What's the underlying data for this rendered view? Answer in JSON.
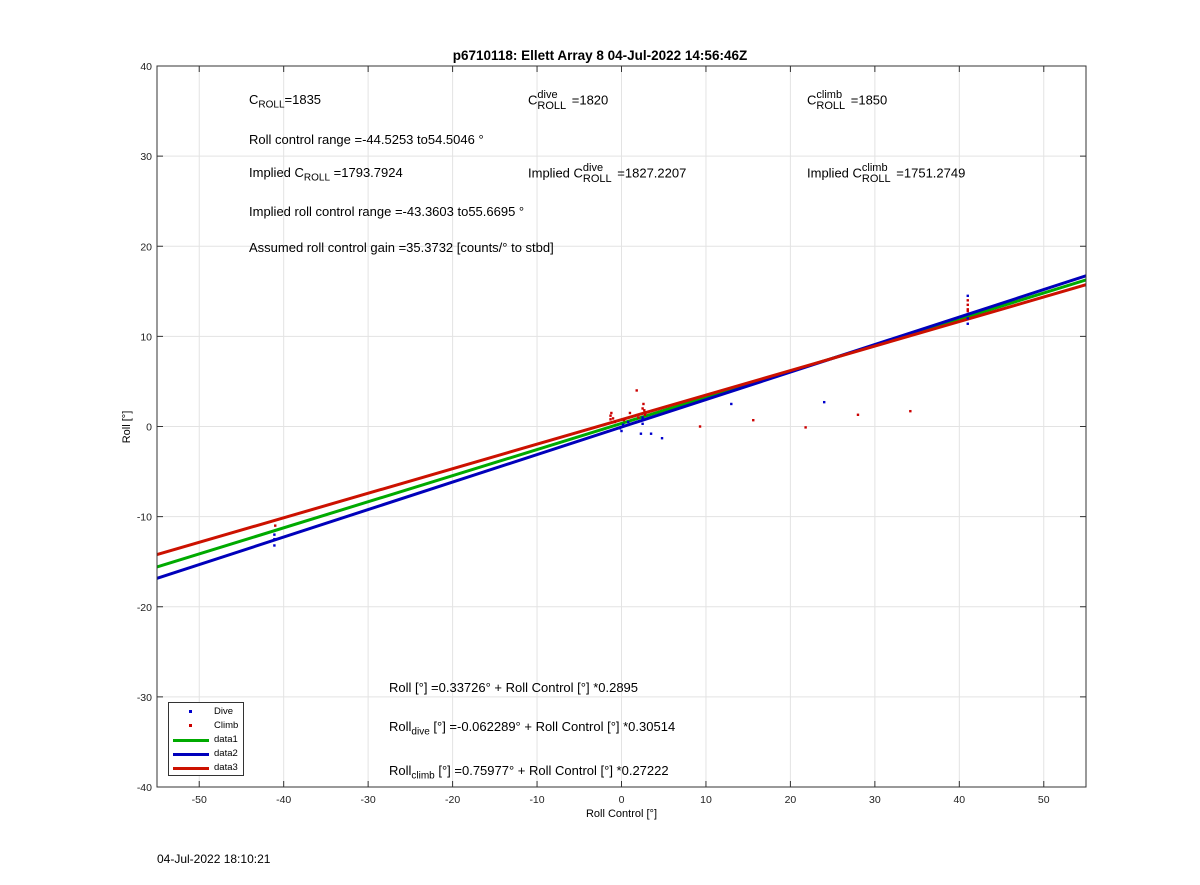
{
  "chart_data": {
    "type": "scatter",
    "title": "p6710118: Ellett Array 8 04-Jul-2022 14:56:46Z",
    "xlabel": "Roll Control [°]",
    "ylabel": "Roll [°]",
    "xlim": [
      -55,
      55
    ],
    "ylim": [
      -40,
      40
    ],
    "xticks": [
      -50,
      -40,
      -30,
      -20,
      -10,
      0,
      10,
      20,
      30,
      40,
      50
    ],
    "yticks": [
      -40,
      -30,
      -20,
      -10,
      0,
      10,
      20,
      30,
      40
    ],
    "grid": true,
    "legend_position": "bottom-left",
    "series": [
      {
        "name": "Dive",
        "kind": "points",
        "color": "#0000cc",
        "x": [
          -41.1,
          -41.1,
          -41.1,
          -0.2,
          0,
          0.2,
          2.3,
          2.5,
          0.8,
          2.5,
          3.5,
          4.8,
          2.5,
          13,
          24,
          41,
          41,
          41
        ],
        "y": [
          -13.2,
          -12.5,
          -12,
          -0.2,
          -0.5,
          0.2,
          -0.8,
          0.3,
          0.5,
          0.8,
          -0.8,
          -1.3,
          1,
          2.5,
          2.7,
          14.5,
          12,
          11.4
        ]
      },
      {
        "name": "Climb",
        "kind": "points",
        "color": "#cc0000",
        "x": [
          -41,
          -1.3,
          -1.3,
          -1.2,
          -1,
          -0.8,
          0.3,
          1,
          1.8,
          2.5,
          2.6,
          2.7,
          2.8,
          2,
          9.3,
          15.6,
          21.8,
          28,
          34.2,
          41,
          41,
          41,
          41
        ],
        "y": [
          -11,
          0.8,
          1.2,
          1.5,
          0.9,
          0.5,
          0.7,
          1.5,
          4,
          2,
          2.5,
          1.8,
          1.3,
          1,
          0,
          0.7,
          -0.1,
          1.3,
          1.7,
          13.5,
          13,
          14,
          12.8
        ]
      },
      {
        "name": "data1",
        "kind": "line",
        "color": "#00aa00",
        "intercept": 0.33726,
        "slope": 0.2895
      },
      {
        "name": "data2",
        "kind": "line",
        "color": "#0000bb",
        "intercept": -0.062289,
        "slope": 0.30514
      },
      {
        "name": "data3",
        "kind": "line",
        "color": "#cc1100",
        "intercept": 0.75977,
        "slope": 0.27222
      }
    ]
  },
  "annotations": {
    "c_roll": {
      "sym": "C",
      "sub": "ROLL",
      "val": "=1835"
    },
    "c_dive": {
      "sym": "C",
      "sup": "dive",
      "sub": "ROLL",
      "val": " =1820"
    },
    "c_climb": {
      "sym": "C",
      "sup": "climb",
      "sub": "ROLL",
      "val": " =1850"
    },
    "roll_range": "Roll control range =-44.5253 to54.5046 °",
    "implied_c_roll": {
      "pre": "Implied C",
      "sub": "ROLL",
      "val": " =1793.7924"
    },
    "implied_c_dive": {
      "pre": "Implied C",
      "sup": "dive",
      "sub": "ROLL",
      "val": " =1827.2207"
    },
    "implied_c_climb": {
      "pre": "Implied C",
      "sup": "climb",
      "sub": "ROLL",
      "val": " =1751.2749"
    },
    "implied_range": "Implied roll control range =-43.3603 to55.6695 °",
    "gain": "Assumed roll control gain =35.3732 [counts/° to stbd]",
    "fit_all": "Roll [°] =0.33726° + Roll Control [°] *0.2895",
    "fit_dive": {
      "pre": "Roll",
      "sub": "dive",
      "val": " [°] =-0.062289° + Roll Control [°] *0.30514"
    },
    "fit_climb": {
      "pre": "Roll",
      "sub": "climb",
      "val": " [°] =0.75977° + Roll Control [°] *0.27222"
    }
  },
  "footer": "04-Jul-2022 18:10:21"
}
